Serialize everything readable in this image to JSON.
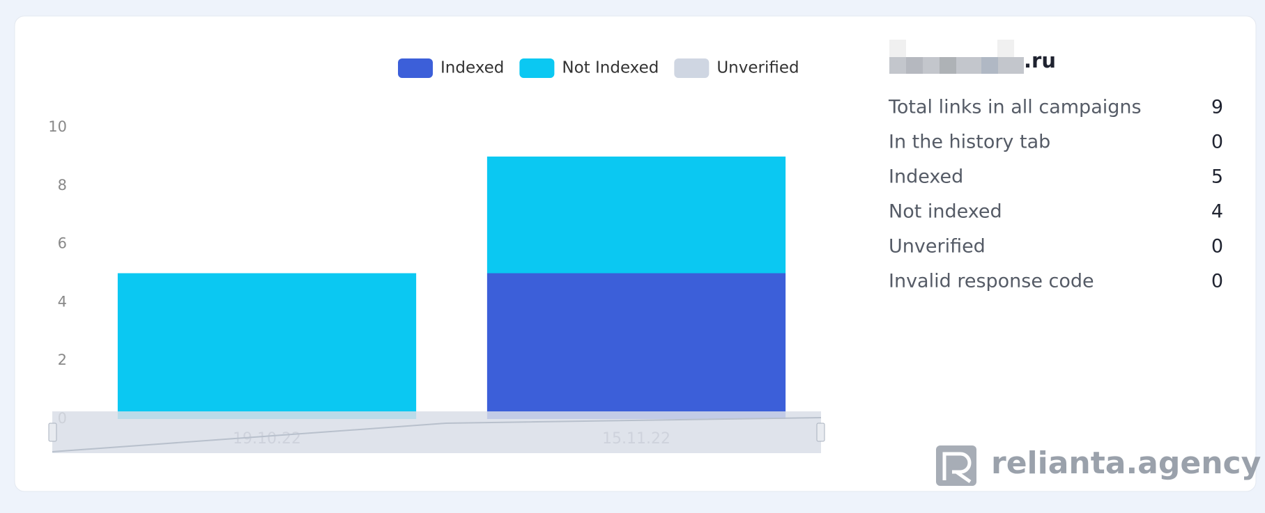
{
  "chart_data": {
    "type": "bar",
    "stacked": true,
    "categories": [
      "19.10.22",
      "15.11.22"
    ],
    "series": [
      {
        "name": "Indexed",
        "color": "#3c5fd9",
        "values": [
          0,
          5
        ]
      },
      {
        "name": "Not Indexed",
        "color": "#0bc8f2",
        "values": [
          5,
          4
        ]
      },
      {
        "name": "Unverified",
        "color": "#cfd6e2",
        "values": [
          0,
          0
        ]
      }
    ],
    "ylim": [
      0,
      10
    ],
    "yticks": [
      0,
      2,
      4,
      6,
      8,
      10
    ],
    "grid": false,
    "legend": "top"
  },
  "panel": {
    "title": ".ru",
    "rows": [
      {
        "label": "Total links in all campaigns",
        "value": "9"
      },
      {
        "label": "In the history tab",
        "value": "0"
      },
      {
        "label": "Indexed",
        "value": "5"
      },
      {
        "label": "Not indexed",
        "value": "4"
      },
      {
        "label": "Unverified",
        "value": "0"
      },
      {
        "label": "Invalid response code",
        "value": "0"
      }
    ],
    "logo": "relianta.agency"
  }
}
